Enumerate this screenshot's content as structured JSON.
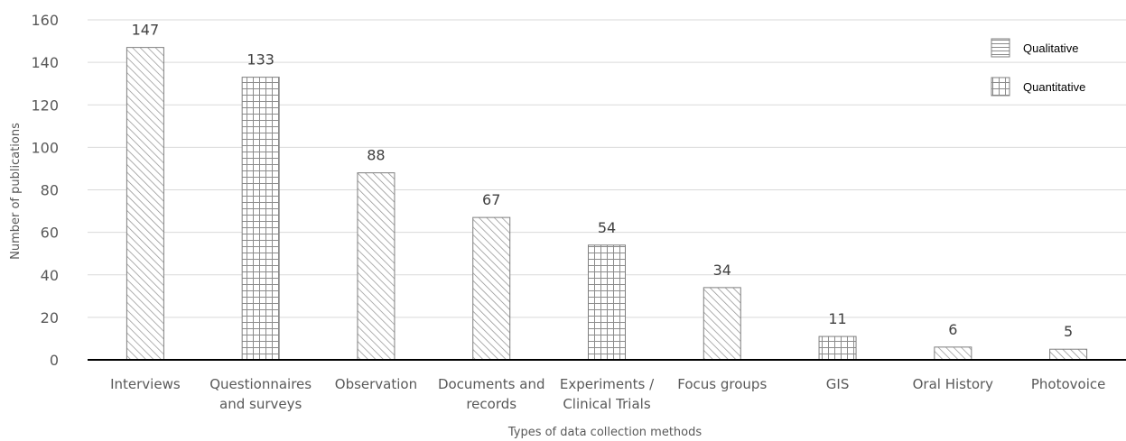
{
  "chart_data": {
    "type": "bar",
    "title": "",
    "xlabel": "Types of data collection methods",
    "ylabel": "Number of publications",
    "ylim": [
      0,
      160
    ],
    "yticks": [
      0,
      20,
      40,
      60,
      80,
      100,
      120,
      140,
      160
    ],
    "grid": true,
    "legend_position": "top-right",
    "categories": [
      [
        "Interviews"
      ],
      [
        "Questionnaires",
        "and surveys"
      ],
      [
        "Observation"
      ],
      [
        "Documents and",
        "records"
      ],
      [
        "Experiments /",
        "Clinical Trials"
      ],
      [
        "Focus groups"
      ],
      [
        "GIS"
      ],
      [
        "Oral History"
      ],
      [
        "Photovoice"
      ]
    ],
    "values": [
      147,
      133,
      88,
      67,
      54,
      34,
      11,
      6,
      5
    ],
    "method_type": [
      "Qualitative",
      "Quantitative",
      "Qualitative",
      "Qualitative",
      "Quantitative",
      "Qualitative",
      "Quantitative",
      "Qualitative",
      "Qualitative"
    ],
    "legend": [
      {
        "name": "Qualitative",
        "pattern": "horizontal-lines"
      },
      {
        "name": "Quantitative",
        "pattern": "grid"
      }
    ],
    "colors": {
      "bar_stroke": "#7f7f7f",
      "pattern": "#8c8c8c",
      "gridline": "#d9d9d9",
      "axis": "#000000"
    }
  }
}
